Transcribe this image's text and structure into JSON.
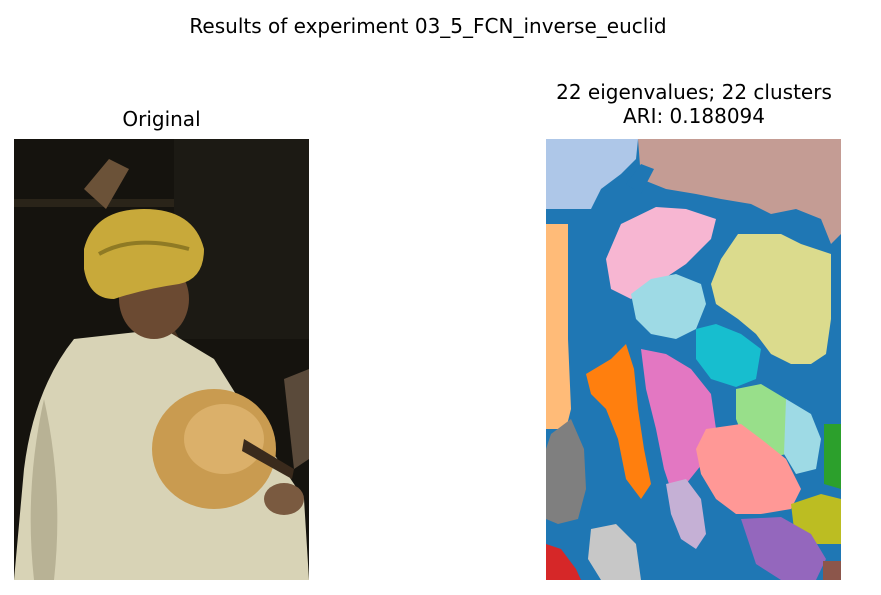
{
  "figure": {
    "suptitle": "Results of experiment 03_5_FCN_inverse_euclid"
  },
  "left_panel": {
    "title": "Original"
  },
  "right_panel": {
    "title_line1": "22 eigenvalues; 22 clusters",
    "title_line2": "ARI: 0.188094"
  },
  "palette": {
    "background_cluster": "#1f77b4",
    "light_blue": "#aec7e8",
    "orange": "#ff7f0e",
    "light_orange": "#ffbb78",
    "green": "#2ca02c",
    "light_green": "#98df8a",
    "red": "#d62728",
    "pink_red": "#ff9896",
    "purple": "#9467bd",
    "lavender": "#c5b0d5",
    "brown": "#8c564b",
    "tan": "#c49c94",
    "magenta": "#e377c2",
    "light_pink": "#f7b6d2",
    "gray": "#7f7f7f",
    "light_gray": "#c7c7c7",
    "olive": "#bcbd22",
    "khaki": "#dbdb8d",
    "cyan": "#17becf",
    "light_cyan": "#9edae5"
  }
}
